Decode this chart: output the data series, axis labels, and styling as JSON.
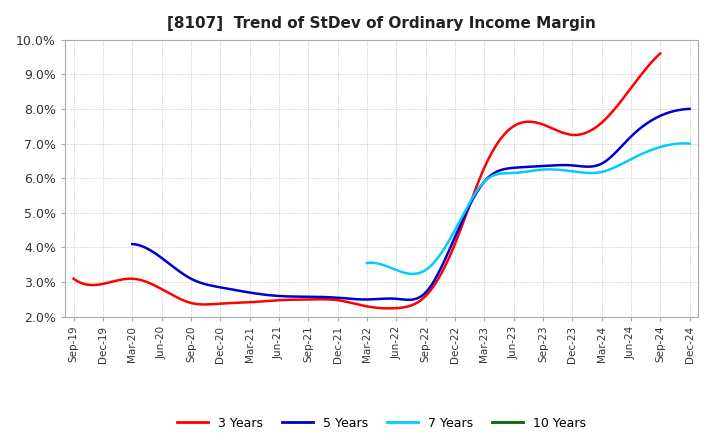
{
  "title": "[8107]  Trend of StDev of Ordinary Income Margin",
  "ylim": [
    0.02,
    0.1
  ],
  "yticks": [
    0.02,
    0.03,
    0.04,
    0.05,
    0.06,
    0.07,
    0.08,
    0.09,
    0.1
  ],
  "background_color": "#ffffff",
  "grid_color": "#aaaaaa",
  "title_fontsize": 11,
  "series": {
    "3 Years": {
      "color": "#ff0000",
      "data": [
        [
          "Sep-19",
          0.031
        ],
        [
          "Dec-19",
          0.0295
        ],
        [
          "Mar-20",
          0.031
        ],
        [
          "Jun-20",
          0.028
        ],
        [
          "Sep-20",
          0.024
        ],
        [
          "Dec-20",
          0.0238
        ],
        [
          "Mar-21",
          0.0242
        ],
        [
          "Jun-21",
          0.0248
        ],
        [
          "Sep-21",
          0.025
        ],
        [
          "Dec-21",
          0.0248
        ],
        [
          "Mar-22",
          0.023
        ],
        [
          "Jun-22",
          0.0225
        ],
        [
          "Sep-22",
          0.026
        ],
        [
          "Dec-22",
          0.041
        ],
        [
          "Mar-23",
          0.063
        ],
        [
          "Jun-23",
          0.075
        ],
        [
          "Sep-23",
          0.0755
        ],
        [
          "Dec-23",
          0.0725
        ],
        [
          "Mar-24",
          0.076
        ],
        [
          "Jun-24",
          0.086
        ],
        [
          "Sep-24",
          0.096
        ],
        [
          "Dec-24",
          null
        ]
      ]
    },
    "5 Years": {
      "color": "#0000cc",
      "data": [
        [
          "Sep-19",
          null
        ],
        [
          "Dec-19",
          null
        ],
        [
          "Mar-20",
          0.041
        ],
        [
          "Jun-20",
          0.037
        ],
        [
          "Sep-20",
          0.031
        ],
        [
          "Dec-20",
          0.0285
        ],
        [
          "Mar-21",
          0.027
        ],
        [
          "Jun-21",
          0.026
        ],
        [
          "Sep-21",
          0.0258
        ],
        [
          "Dec-21",
          0.0255
        ],
        [
          "Mar-22",
          0.025
        ],
        [
          "Jun-22",
          0.0252
        ],
        [
          "Sep-22",
          0.027
        ],
        [
          "Dec-22",
          0.043
        ],
        [
          "Mar-23",
          0.059
        ],
        [
          "Jun-23",
          0.063
        ],
        [
          "Sep-23",
          0.0635
        ],
        [
          "Dec-23",
          0.0637
        ],
        [
          "Mar-24",
          0.0642
        ],
        [
          "Jun-24",
          0.072
        ],
        [
          "Sep-24",
          0.078
        ],
        [
          "Dec-24",
          0.08
        ]
      ]
    },
    "7 Years": {
      "color": "#00ccff",
      "data": [
        [
          "Sep-19",
          null
        ],
        [
          "Dec-19",
          null
        ],
        [
          "Mar-20",
          null
        ],
        [
          "Jun-20",
          null
        ],
        [
          "Sep-20",
          null
        ],
        [
          "Dec-20",
          null
        ],
        [
          "Mar-21",
          null
        ],
        [
          "Jun-21",
          null
        ],
        [
          "Sep-21",
          null
        ],
        [
          "Dec-21",
          null
        ],
        [
          "Mar-22",
          0.0355
        ],
        [
          "Jun-22",
          0.0335
        ],
        [
          "Sep-22",
          0.0335
        ],
        [
          "Dec-22",
          0.045
        ],
        [
          "Mar-23",
          0.059
        ],
        [
          "Jun-23",
          0.0615
        ],
        [
          "Sep-23",
          0.0625
        ],
        [
          "Dec-23",
          0.062
        ],
        [
          "Mar-24",
          0.0618
        ],
        [
          "Jun-24",
          0.0655
        ],
        [
          "Sep-24",
          0.069
        ],
        [
          "Dec-24",
          0.07
        ]
      ]
    },
    "10 Years": {
      "color": "#006600",
      "data": [
        [
          "Sep-19",
          null
        ],
        [
          "Dec-19",
          null
        ],
        [
          "Mar-20",
          null
        ],
        [
          "Jun-20",
          null
        ],
        [
          "Sep-20",
          null
        ],
        [
          "Dec-20",
          null
        ],
        [
          "Mar-21",
          null
        ],
        [
          "Jun-21",
          null
        ],
        [
          "Sep-21",
          null
        ],
        [
          "Dec-21",
          null
        ],
        [
          "Mar-22",
          null
        ],
        [
          "Jun-22",
          null
        ],
        [
          "Sep-22",
          null
        ],
        [
          "Dec-22",
          null
        ],
        [
          "Mar-23",
          null
        ],
        [
          "Jun-23",
          null
        ],
        [
          "Sep-23",
          null
        ],
        [
          "Dec-23",
          null
        ],
        [
          "Mar-24",
          null
        ],
        [
          "Jun-24",
          null
        ],
        [
          "Sep-24",
          null
        ],
        [
          "Dec-24",
          null
        ]
      ]
    }
  },
  "xtick_labels": [
    "Sep-19",
    "Dec-19",
    "Mar-20",
    "Jun-20",
    "Sep-20",
    "Dec-20",
    "Mar-21",
    "Jun-21",
    "Sep-21",
    "Dec-21",
    "Mar-22",
    "Jun-22",
    "Sep-22",
    "Dec-22",
    "Mar-23",
    "Jun-23",
    "Sep-23",
    "Dec-23",
    "Mar-24",
    "Jun-24",
    "Sep-24",
    "Dec-24"
  ],
  "legend_entries": [
    "3 Years",
    "5 Years",
    "7 Years",
    "10 Years"
  ],
  "legend_colors": [
    "#ff0000",
    "#0000cc",
    "#00ccff",
    "#006600"
  ]
}
